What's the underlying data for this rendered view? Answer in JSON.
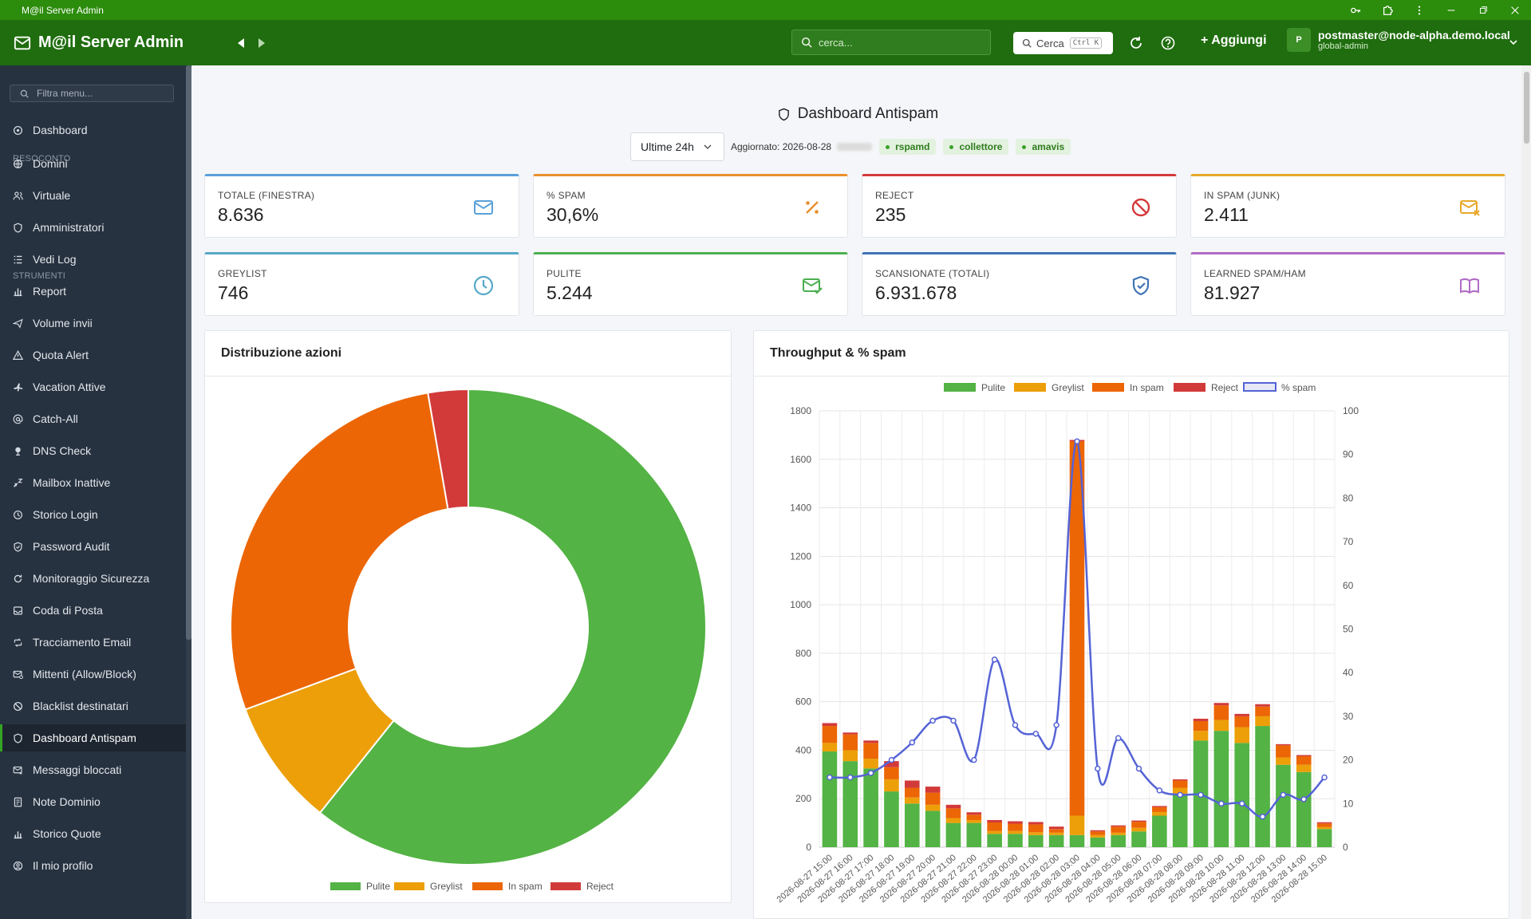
{
  "window": {
    "title": "M@il Server Admin"
  },
  "header": {
    "brand": "M@il Server Admin",
    "search_placeholder": "cerca...",
    "cerca_label": "Cerca",
    "cerca_shortcut": "Ctrl K",
    "add_label": "+ Aggiungi",
    "user_initial": "P",
    "user_email": "postmaster@node-alpha.demo.local",
    "user_role": "global-admin"
  },
  "sidebar": {
    "filter_placeholder": "Filtra menu...",
    "dashboard": "Dashboard",
    "section_resoconto": "RESOCONTO",
    "section_strumenti": "STRUMENTI",
    "items": [
      {
        "label": "Domini",
        "icon": "globe-icon"
      },
      {
        "label": "Virtuale",
        "icon": "users-icon"
      },
      {
        "label": "Amministratori",
        "icon": "shield-icon"
      },
      {
        "label": "Vedi Log",
        "icon": "list-icon"
      },
      {
        "label": "Report",
        "icon": "bar-chart-icon"
      },
      {
        "label": "Volume invii",
        "icon": "send-icon"
      },
      {
        "label": "Quota Alert",
        "icon": "warning-icon"
      },
      {
        "label": "Vacation Attive",
        "icon": "plane-icon"
      },
      {
        "label": "Catch-All",
        "icon": "at-icon"
      },
      {
        "label": "DNS Check",
        "icon": "dns-icon"
      },
      {
        "label": "Mailbox Inattive",
        "icon": "sleep-icon"
      },
      {
        "label": "Storico Login",
        "icon": "history-icon"
      },
      {
        "label": "Password Audit",
        "icon": "shield-check-icon"
      },
      {
        "label": "Monitoraggio Sicurezza",
        "icon": "monitor-icon"
      },
      {
        "label": "Coda di Posta",
        "icon": "inbox-icon"
      },
      {
        "label": "Tracciamento Email",
        "icon": "route-icon"
      },
      {
        "label": "Mittenti (Allow/Block)",
        "icon": "mail-filter-icon"
      },
      {
        "label": "Blacklist destinatari",
        "icon": "block-icon"
      },
      {
        "label": "Dashboard Antispam",
        "icon": "shield-icon"
      },
      {
        "label": "Messaggi bloccati",
        "icon": "mail-block-icon"
      },
      {
        "label": "Note Dominio",
        "icon": "note-icon"
      },
      {
        "label": "Storico Quote",
        "icon": "chart-icon"
      },
      {
        "label": "Il mio profilo",
        "icon": "profile-icon"
      }
    ]
  },
  "page": {
    "title": "Dashboard Antispam",
    "range_select": "Ultime 24h",
    "updated": "Aggiornato: 2026-08-28",
    "pills": [
      "rspamd",
      "collettore",
      "amavis"
    ]
  },
  "cards": [
    {
      "label": "TOTALE (FINESTRA)",
      "value": "8.636",
      "color": "#5aa0d8",
      "icon": "mail-icon"
    },
    {
      "label": "% SPAM",
      "value": "30,6%",
      "color": "#e98f2c",
      "icon": "percent-icon"
    },
    {
      "label": "REJECT",
      "value": "235",
      "color": "#d43a3a",
      "icon": "ban-icon"
    },
    {
      "label": "IN SPAM (JUNK)",
      "value": "2.411",
      "color": "#e8a92a",
      "icon": "mail-x-icon"
    },
    {
      "label": "GREYLIST",
      "value": "746",
      "color": "#57a8c9",
      "icon": "clock-icon"
    },
    {
      "label": "PULITE",
      "value": "5.244",
      "color": "#4caf50",
      "icon": "mail-check-icon"
    },
    {
      "label": "SCANSIONATE (TOTALI)",
      "value": "6.931.678",
      "color": "#3f74b5",
      "icon": "shield-check-icon"
    },
    {
      "label": "LEARNED SPAM/HAM",
      "value": "81.927",
      "color": "#b06bc4",
      "icon": "book-icon"
    }
  ],
  "panels": {
    "donut_title": "Distribuzione azioni",
    "combo_title": "Throughput & % spam"
  },
  "chart_data": [
    {
      "type": "pie",
      "title": "Distribuzione azioni",
      "categories": [
        "Pulite",
        "Greylist",
        "In spam",
        "Reject"
      ],
      "values": [
        5244,
        746,
        2411,
        235
      ],
      "colors": [
        "#53b344",
        "#ec9f09",
        "#ec6605",
        "#d23a3a"
      ],
      "legend": "bottom"
    },
    {
      "type": "bar",
      "title": "Throughput & % spam",
      "stacked": true,
      "categories": [
        "2026-08-27 15:00",
        "2026-08-27 16:00",
        "2026-08-27 17:00",
        "2026-08-27 18:00",
        "2026-08-27 19:00",
        "2026-08-27 20:00",
        "2026-08-27 21:00",
        "2026-08-27 22:00",
        "2026-08-27 23:00",
        "2026-08-28 00:00",
        "2026-08-28 01:00",
        "2026-08-28 02:00",
        "2026-08-28 03:00",
        "2026-08-28 04:00",
        "2026-08-28 05:00",
        "2026-08-28 06:00",
        "2026-08-28 07:00",
        "2026-08-28 08:00",
        "2026-08-28 09:00",
        "2026-08-28 10:00",
        "2026-08-28 11:00",
        "2026-08-28 12:00",
        "2026-08-28 13:00",
        "2026-08-28 14:00",
        "2026-08-28 15:00"
      ],
      "series": [
        {
          "name": "Pulite",
          "color": "#53b344",
          "values": [
            395,
            355,
            325,
            230,
            180,
            150,
            100,
            100,
            55,
            55,
            50,
            50,
            50,
            40,
            50,
            65,
            130,
            220,
            440,
            480,
            430,
            500,
            340,
            310,
            75
          ]
        },
        {
          "name": "Greylist",
          "color": "#ec9f09",
          "values": [
            35,
            45,
            40,
            50,
            25,
            25,
            20,
            12,
            12,
            12,
            12,
            10,
            80,
            10,
            10,
            15,
            15,
            25,
            40,
            45,
            65,
            40,
            30,
            30,
            8
          ]
        },
        {
          "name": "In spam",
          "color": "#ec6605",
          "values": [
            70,
            65,
            65,
            50,
            40,
            50,
            40,
            22,
            35,
            30,
            32,
            15,
            1545,
            15,
            25,
            25,
            20,
            30,
            40,
            60,
            45,
            40,
            50,
            35,
            15
          ]
        },
        {
          "name": "Reject",
          "color": "#d23a3a",
          "values": [
            12,
            8,
            10,
            25,
            30,
            25,
            15,
            10,
            10,
            10,
            10,
            10,
            5,
            5,
            5,
            5,
            5,
            5,
            10,
            10,
            10,
            10,
            5,
            5,
            5
          ]
        }
      ],
      "line_series": {
        "name": "% spam",
        "color": "#5563d6",
        "axis": "right",
        "values": [
          16,
          16,
          17,
          20,
          24,
          29,
          29,
          20,
          43,
          28,
          26,
          28,
          93,
          18,
          25,
          18,
          13,
          12,
          12,
          10,
          10,
          7,
          12,
          11,
          16
        ]
      },
      "ylim": [
        0,
        1800
      ],
      "y2lim": [
        0,
        100
      ],
      "yticks": [
        0,
        200,
        400,
        600,
        800,
        1000,
        1200,
        1400,
        1600,
        1800
      ],
      "y2ticks": [
        0,
        10,
        20,
        30,
        40,
        50,
        60,
        70,
        80,
        90,
        100
      ],
      "grid": true,
      "legend": "top"
    }
  ]
}
